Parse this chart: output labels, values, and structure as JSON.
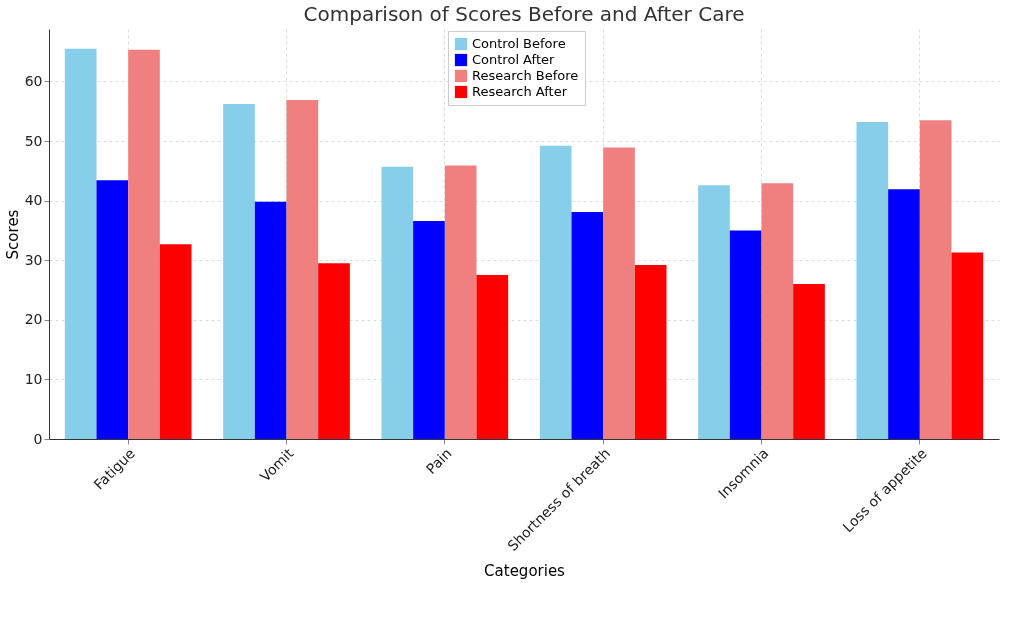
{
  "chart_data": {
    "type": "bar",
    "title": "Comparison of Scores Before and After Care",
    "xlabel": "Categories",
    "ylabel": "Scores",
    "categories": [
      "Fatigue",
      "Vomit",
      "Pain",
      "Shortness of breath",
      "Insomnia",
      "Loss of appetite"
    ],
    "series": [
      {
        "name": "Control Before",
        "color": "#87ceeb",
        "values": [
          65.5,
          56.2,
          45.7,
          49.2,
          42.6,
          53.2
        ]
      },
      {
        "name": "Control After",
        "color": "#0000ff",
        "values": [
          43.4,
          39.8,
          36.6,
          38.1,
          35.0,
          41.9
        ]
      },
      {
        "name": "Research Before",
        "color": "#f08080",
        "values": [
          65.3,
          56.9,
          45.9,
          48.9,
          42.9,
          53.5
        ]
      },
      {
        "name": "Research After",
        "color": "#ff0000",
        "values": [
          32.7,
          29.5,
          27.5,
          29.2,
          26.0,
          31.3
        ]
      }
    ],
    "ylim": [
      0,
      68.8
    ],
    "yticks": [
      0,
      10,
      20,
      30,
      40,
      50,
      60
    ],
    "grid": true,
    "legend": "top"
  }
}
